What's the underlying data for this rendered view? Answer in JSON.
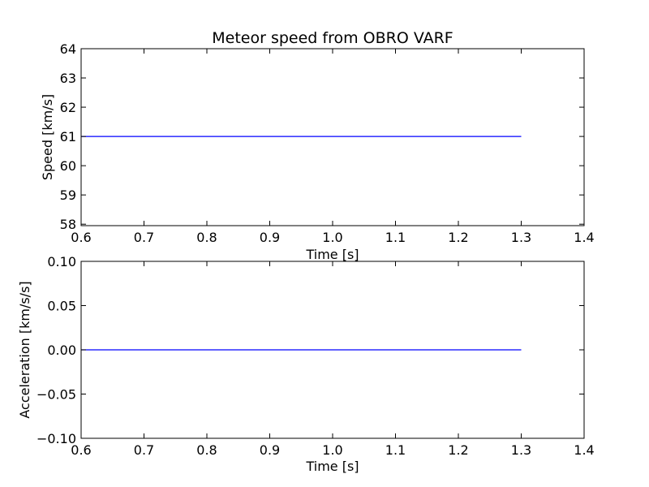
{
  "chart_data": [
    {
      "type": "line",
      "title": "Meteor speed from  OBRO VARF",
      "xlabel": "Time [s]",
      "ylabel": "Speed [km/s]",
      "xlim": [
        0.6,
        1.4
      ],
      "ylim": [
        57.95,
        64
      ],
      "xticks": [
        "0.6",
        "0.7",
        "0.8",
        "0.9",
        "1.0",
        "1.1",
        "1.2",
        "1.3",
        "1.4"
      ],
      "yticks": [
        "58",
        "59",
        "60",
        "61",
        "62",
        "63",
        "64"
      ],
      "grid": false,
      "series": [
        {
          "color": "#0000ff",
          "x": [
            0.6,
            1.3
          ],
          "y": [
            61.0,
            61.0
          ]
        }
      ]
    },
    {
      "type": "line",
      "title": "",
      "xlabel": "Time [s]",
      "ylabel": "Acceleration [km/s/s]",
      "xlim": [
        0.6,
        1.4
      ],
      "ylim": [
        -0.1,
        0.1
      ],
      "xticks": [
        "0.6",
        "0.7",
        "0.8",
        "0.9",
        "1.0",
        "1.1",
        "1.2",
        "1.3",
        "1.4"
      ],
      "yticks": [
        "−0.10",
        "−0.05",
        "0.00",
        "0.05",
        "0.10"
      ],
      "grid": false,
      "series": [
        {
          "color": "#0000ff",
          "x": [
            0.6,
            1.3
          ],
          "y": [
            0.0,
            0.0
          ]
        }
      ]
    }
  ]
}
